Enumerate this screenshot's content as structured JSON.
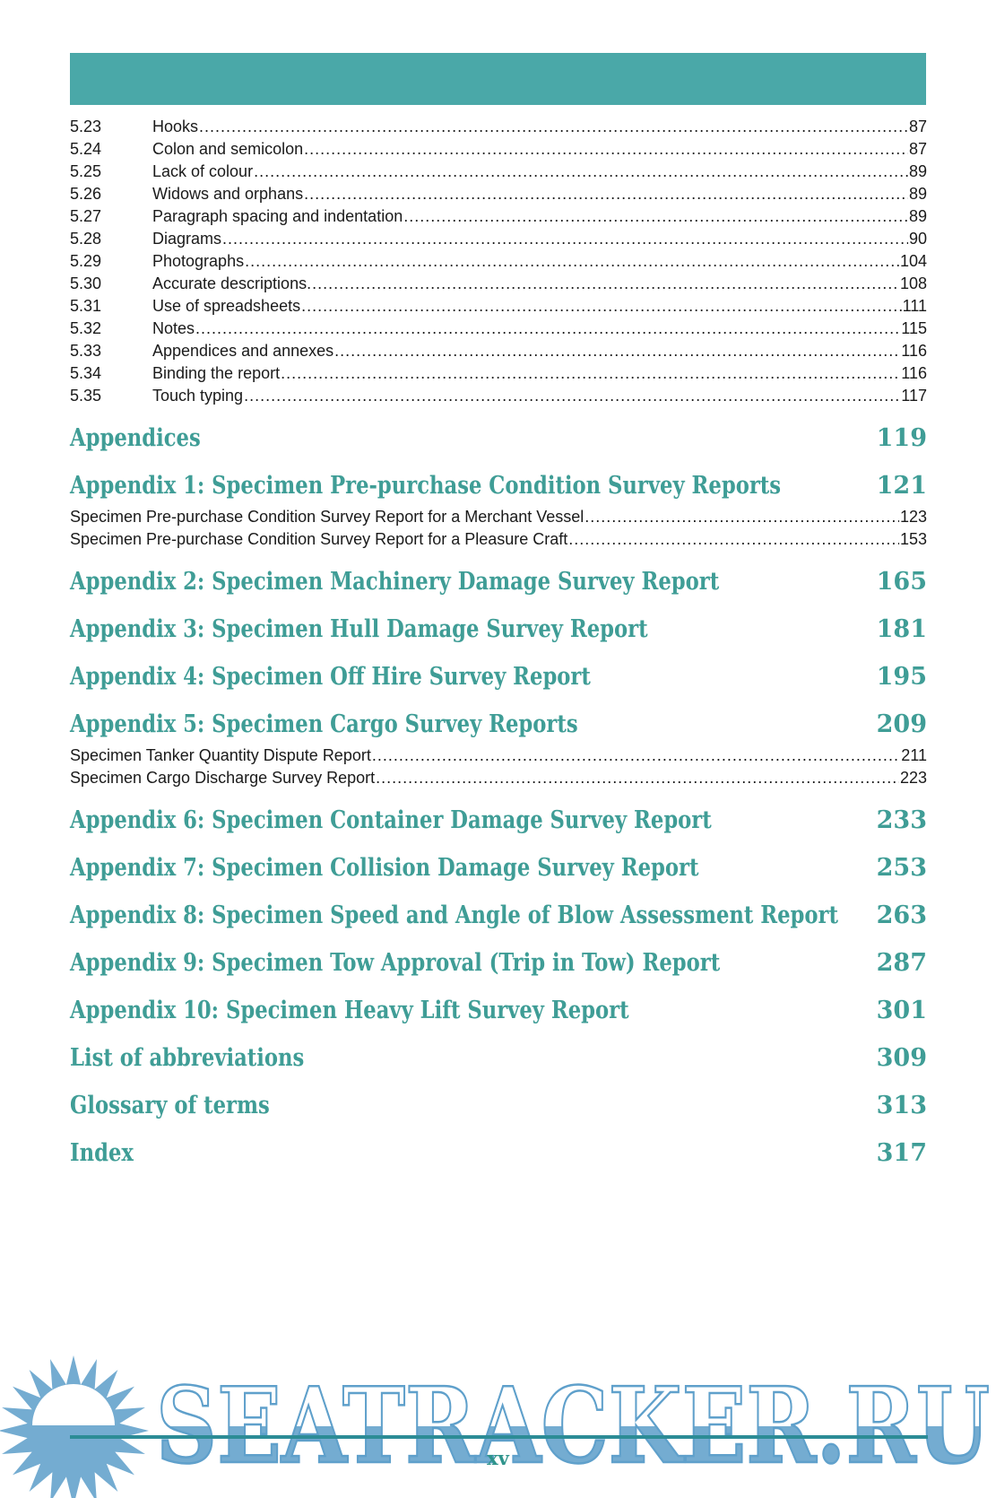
{
  "colors": {
    "header_bar": "#4AA8A8",
    "heading_teal": "#3F9D96",
    "body_text": "#1A1A1A",
    "watermark_blue": "#74ACD1",
    "watermark_stroke": "#5FA0CB",
    "rule_teal": "#2C8C96",
    "folio_teal": "#2F948C"
  },
  "toc": {
    "numbered_entries": [
      {
        "num": "5.23",
        "title": "Hooks",
        "page": "87"
      },
      {
        "num": "5.24",
        "title": "Colon and semicolon",
        "page": "87"
      },
      {
        "num": "5.25",
        "title": "Lack of colour",
        "page": "89"
      },
      {
        "num": "5.26",
        "title": "Widows and orphans",
        "page": "89"
      },
      {
        "num": "5.27",
        "title": "Paragraph spacing and indentation",
        "page": "89"
      },
      {
        "num": "5.28",
        "title": "Diagrams",
        "page": "90"
      },
      {
        "num": "5.29",
        "title": "Photographs",
        "page": "104"
      },
      {
        "num": "5.30",
        "title": "Accurate descriptions.",
        "page": "108"
      },
      {
        "num": "5.31",
        "title": "Use of spreadsheets",
        "page": "111"
      },
      {
        "num": "5.32",
        "title": "Notes",
        "page": "115"
      },
      {
        "num": "5.33",
        "title": "Appendices and annexes",
        "page": "116"
      },
      {
        "num": "5.34",
        "title": "Binding the report",
        "page": "116"
      },
      {
        "num": "5.35",
        "title": "Touch typing",
        "page": "117"
      }
    ],
    "sections": [
      {
        "title": "Appendices",
        "page": "119"
      },
      {
        "title": "Appendix 1: Specimen Pre-purchase Condition Survey Reports",
        "page": "121",
        "children": [
          {
            "title": "Specimen Pre-purchase Condition Survey Report for a Merchant Vessel",
            "page": "123"
          },
          {
            "title": "Specimen Pre-purchase Condition Survey Report for a Pleasure Craft",
            "page": "153"
          }
        ]
      },
      {
        "title": "Appendix 2: Specimen Machinery Damage Survey Report",
        "page": "165"
      },
      {
        "title": "Appendix 3: Specimen Hull Damage Survey Report",
        "page": "181"
      },
      {
        "title": "Appendix 4: Specimen Off Hire Survey Report",
        "page": "195"
      },
      {
        "title": "Appendix 5: Specimen Cargo Survey Reports",
        "page": "209",
        "children": [
          {
            "title": "Specimen Tanker Quantity Dispute Report ",
            "page": "211"
          },
          {
            "title": "Specimen Cargo Discharge Survey Report",
            "page": "223"
          }
        ]
      },
      {
        "title": "Appendix 6: Specimen Container Damage Survey Report",
        "page": "233"
      },
      {
        "title": "Appendix 7: Specimen Collision Damage Survey Report",
        "page": "253"
      },
      {
        "title": "Appendix 8: Specimen Speed and Angle of Blow Assessment Report",
        "page": "263"
      },
      {
        "title": "Appendix 9: Specimen Tow Approval (Trip in Tow) Report",
        "page": "287"
      },
      {
        "title": "Appendix 10: Specimen Heavy Lift Survey Report",
        "page": "301"
      },
      {
        "title": "List of abbreviations",
        "page": "309"
      },
      {
        "title": "Glossary of terms",
        "page": "313"
      },
      {
        "title": "Index",
        "page": "317"
      }
    ]
  },
  "watermark": {
    "text": "SEATRACKER.RU"
  },
  "footer": {
    "page_number_label": "xv"
  }
}
